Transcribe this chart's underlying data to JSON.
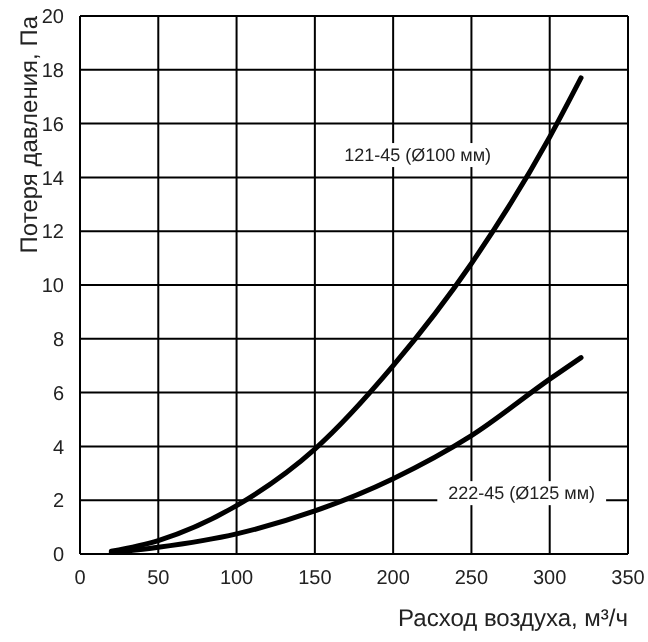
{
  "chart_data": {
    "type": "line",
    "xlabel": "Расход воздуха, м³/ч",
    "ylabel": "Потеря давления, Па",
    "x": [
      20,
      50,
      100,
      150,
      200,
      250,
      300,
      320
    ],
    "series": [
      {
        "name": "121-45 (Ø100 мм)",
        "color": "#000000",
        "values": [
          0.1,
          0.5,
          1.8,
          3.9,
          7.0,
          10.8,
          15.5,
          17.7
        ]
      },
      {
        "name": "222-45 (Ø125 мм)",
        "color": "#000000",
        "values": [
          0.05,
          0.25,
          0.75,
          1.6,
          2.8,
          4.4,
          6.5,
          7.3
        ]
      }
    ],
    "xlim": [
      0,
      350
    ],
    "xticks": [
      0,
      50,
      100,
      150,
      200,
      250,
      300,
      350
    ],
    "ylim": [
      0,
      20
    ],
    "yticks": [
      0,
      2,
      4,
      6,
      8,
      10,
      12,
      14,
      16,
      18,
      20
    ],
    "grid": true,
    "legend": false,
    "marker": "none",
    "line_style": "solid"
  }
}
